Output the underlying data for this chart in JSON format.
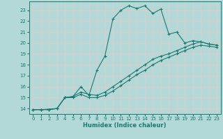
{
  "xlabel": "Humidex (Indice chaleur)",
  "bg_color": "#b2d8d8",
  "grid_color": "#e8c8c8",
  "line_color": "#1a7a6e",
  "xlim": [
    -0.5,
    23.5
  ],
  "ylim": [
    13.5,
    23.8
  ],
  "xticks": [
    0,
    1,
    2,
    3,
    4,
    5,
    6,
    7,
    8,
    9,
    10,
    11,
    12,
    13,
    14,
    15,
    16,
    17,
    18,
    19,
    20,
    21,
    22,
    23
  ],
  "yticks": [
    14,
    15,
    16,
    17,
    18,
    19,
    20,
    21,
    22,
    23
  ],
  "line1_x": [
    0,
    1,
    3,
    4,
    5,
    6,
    7,
    8,
    9,
    10,
    11,
    12,
    13,
    14,
    15,
    16,
    17,
    18,
    19,
    20,
    21,
    22,
    23
  ],
  "line1_y": [
    13.9,
    13.9,
    14.0,
    15.0,
    15.1,
    16.0,
    15.2,
    17.5,
    18.8,
    22.2,
    23.0,
    23.4,
    23.15,
    23.4,
    22.7,
    23.1,
    20.8,
    21.0,
    20.0,
    20.2,
    20.1,
    19.9,
    19.8
  ],
  "line2_x": [
    0,
    1,
    2,
    3,
    4,
    5,
    6,
    7,
    8,
    9,
    10,
    11,
    12,
    13,
    14,
    15,
    16,
    17,
    18,
    19,
    20,
    21,
    22,
    23
  ],
  "line2_y": [
    13.9,
    13.9,
    13.9,
    14.0,
    15.0,
    15.1,
    15.5,
    15.3,
    15.2,
    15.5,
    16.0,
    16.5,
    17.0,
    17.5,
    18.0,
    18.5,
    18.8,
    19.0,
    19.3,
    19.6,
    19.9,
    20.1,
    19.9,
    19.8
  ],
  "line3_x": [
    0,
    1,
    2,
    3,
    4,
    5,
    6,
    7,
    8,
    9,
    10,
    11,
    12,
    13,
    14,
    15,
    16,
    17,
    18,
    19,
    20,
    21,
    22,
    23
  ],
  "line3_y": [
    13.9,
    13.9,
    13.9,
    14.0,
    15.0,
    15.0,
    15.3,
    15.0,
    15.0,
    15.2,
    15.6,
    16.1,
    16.6,
    17.1,
    17.5,
    18.0,
    18.4,
    18.7,
    19.0,
    19.3,
    19.6,
    19.8,
    19.7,
    19.6
  ]
}
